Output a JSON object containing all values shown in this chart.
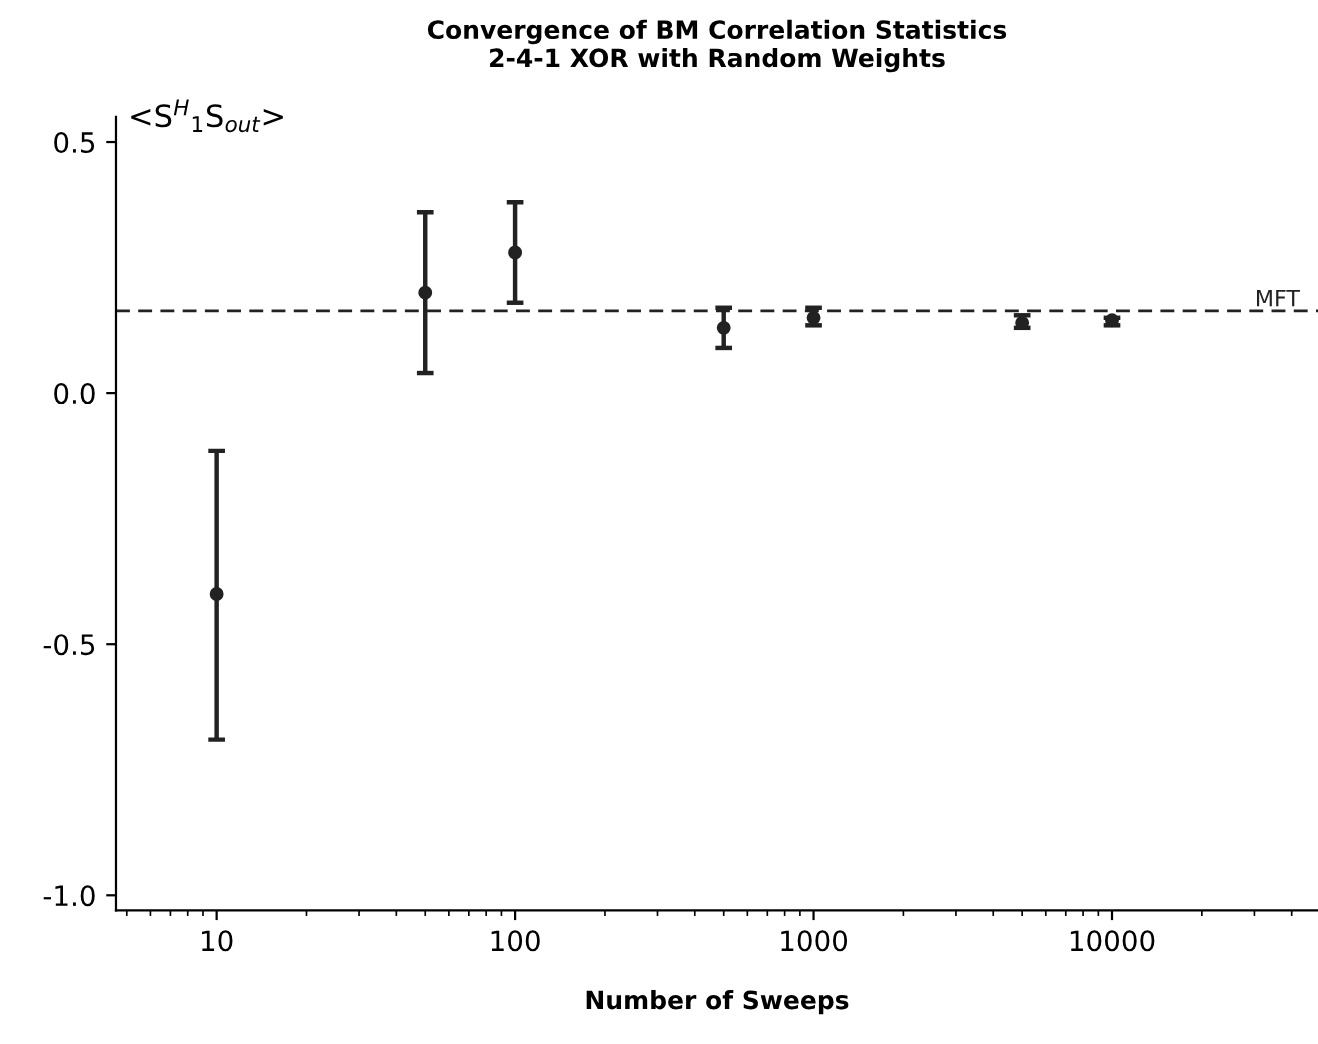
{
  "chart_data": {
    "type": "scatter",
    "title": "Convergence of BM Correlation Statistics\n2-4-1 XOR with Random Weights",
    "xlabel": "Number of Sweeps",
    "ylabel": "<S$^{H}$$_{1}$S$_{out}$>",
    "x": [
      10,
      50,
      100,
      500,
      1000,
      5000,
      10000
    ],
    "series": [
      {
        "color": "#222222",
        "values": [
          -0.4,
          0.2,
          0.28,
          0.13,
          0.15,
          0.14,
          0.145
        ],
        "errors": [
          [
            -0.69,
            -0.115
          ],
          [
            0.04,
            0.36
          ],
          [
            0.18,
            0.38
          ],
          [
            0.09,
            0.17
          ],
          [
            0.135,
            0.17
          ],
          [
            0.13,
            0.155
          ],
          [
            0.135,
            0.15
          ]
        ]
      }
    ],
    "log": "x",
    "xlim": [
      4.6,
      49000
    ],
    "xticks": [
      10,
      100,
      1000,
      10000
    ],
    "ylim": [
      -1.03,
      0.55
    ],
    "yticks": [
      {
        "value": -1.0,
        "label": "-1.0"
      },
      {
        "value": -0.5,
        "label": "-0.5"
      },
      {
        "value": 0.0,
        "label": "0.0"
      },
      {
        "value": 0.5,
        "label": "0.5"
      }
    ],
    "ref_lines": [
      {
        "axis": "y",
        "value": 0.164,
        "label": "MFT",
        "line_style": "dashed",
        "color": "#222222"
      }
    ],
    "marker": "circle",
    "grid": false,
    "legend": false
  }
}
